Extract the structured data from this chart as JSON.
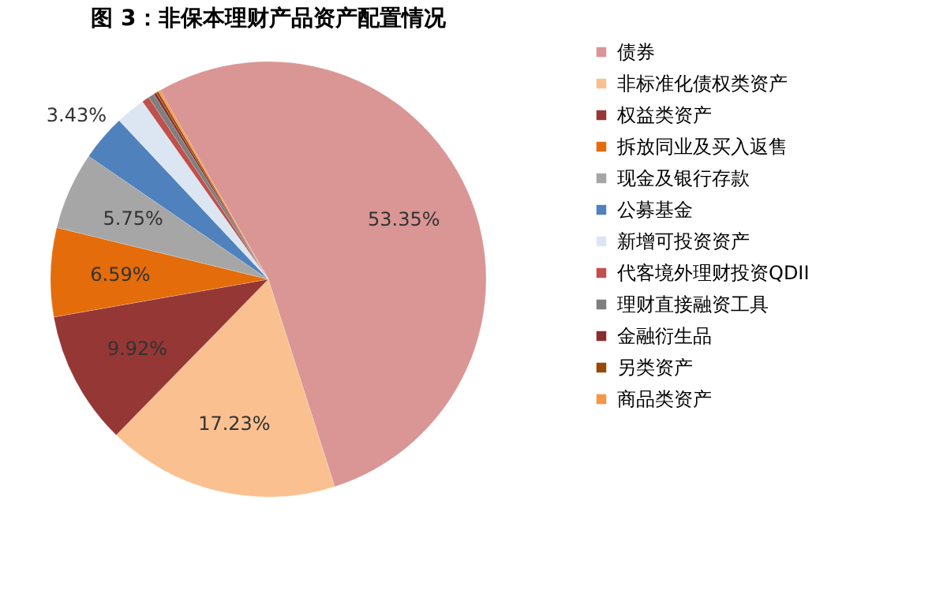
{
  "chart_data": {
    "type": "pie",
    "title": "图 3：非保本理财产品资产配置情况",
    "categories": [
      "债券",
      "非标准化债权类资产",
      "权益类资产",
      "拆放同业及买入返售",
      "现金及银行存款",
      "公募基金",
      "新增可投资资产",
      "代客境外理财投资QDII",
      "理财直接融资工具",
      "金融衍生品",
      "另类资产",
      "商品类资产"
    ],
    "values": [
      53.35,
      17.23,
      9.92,
      6.59,
      5.75,
      3.43,
      2.2,
      0.55,
      0.45,
      0.2,
      0.17,
      0.16
    ],
    "value_labels": [
      "53.35%",
      "17.23%",
      "9.92%",
      "6.59%",
      "5.75%",
      "3.43%",
      null,
      null,
      null,
      null,
      null,
      null
    ],
    "colors": [
      "#d99694",
      "#fac090",
      "#953735",
      "#e46c0a",
      "#a6a6a6",
      "#4f81bd",
      "#dce6f2",
      "#c0504d",
      "#7f7f7f",
      "#8b2d2d",
      "#984807",
      "#f79646"
    ],
    "legend": "right"
  }
}
